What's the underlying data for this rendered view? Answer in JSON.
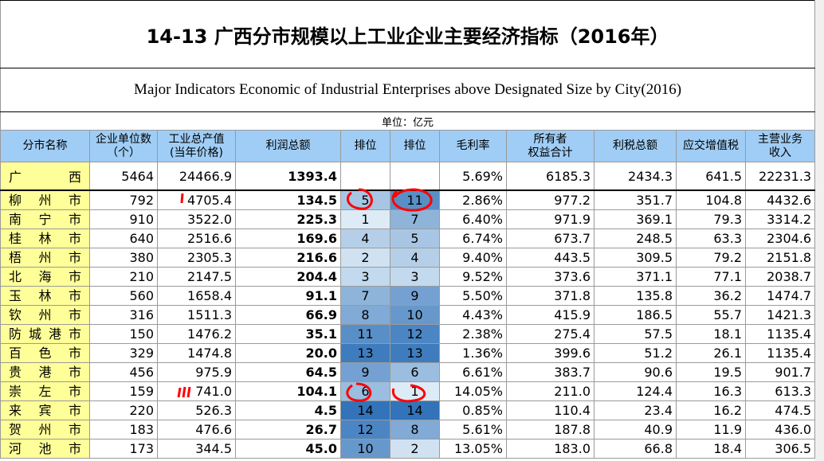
{
  "table": {
    "title": "14-13  广西分市规模以上工业企业主要经济指标（2016年）",
    "subtitle": "Major Indicators Economic of Industrial Enterprises above Designated Size by City(2016)",
    "unit": "单位：亿元",
    "header": [
      [
        "分市名称"
      ],
      [
        "企业单位数",
        "（个）"
      ],
      [
        "工业总产值",
        "(当年价格)"
      ],
      [
        "利润总额"
      ],
      [
        "排位"
      ],
      [
        "排位"
      ],
      [
        "毛利率"
      ],
      [
        "所有者",
        "权益合计"
      ],
      [
        "利税总额"
      ],
      [
        "应交增值税"
      ],
      [
        "主营业务",
        "收入"
      ]
    ],
    "total": {
      "name": "广　西",
      "cells": {
        "1": "5464",
        "2": "24466.9",
        "3": "1393.4",
        "6": "5.69%",
        "7": "6185.3",
        "8": "2434.3",
        "9": "641.5",
        "10": "22231.3"
      }
    },
    "rows": [
      [
        "柳州市",
        "792",
        "4705.4",
        "134.5",
        "5",
        "11",
        "2.86%",
        "977.2",
        "351.7",
        "104.8",
        "4432.6"
      ],
      [
        "南宁市",
        "910",
        "3522.0",
        "225.3",
        "1",
        "7",
        "6.40%",
        "971.9",
        "369.1",
        "79.3",
        "3314.2"
      ],
      [
        "桂林市",
        "640",
        "2516.6",
        "169.6",
        "4",
        "5",
        "6.74%",
        "673.7",
        "248.5",
        "63.3",
        "2304.6"
      ],
      [
        "梧州市",
        "380",
        "2305.3",
        "216.6",
        "2",
        "4",
        "9.40%",
        "443.5",
        "309.5",
        "79.2",
        "2151.8"
      ],
      [
        "北海市",
        "210",
        "2147.5",
        "204.4",
        "3",
        "3",
        "9.52%",
        "373.6",
        "371.1",
        "77.1",
        "2038.7"
      ],
      [
        "玉林市",
        "560",
        "1658.4",
        "91.1",
        "7",
        "9",
        "5.50%",
        "371.8",
        "135.8",
        "36.2",
        "1474.7"
      ],
      [
        "钦州市",
        "316",
        "1511.3",
        "66.9",
        "8",
        "10",
        "4.43%",
        "415.9",
        "186.5",
        "55.7",
        "1421.3"
      ],
      [
        "防城港市",
        "150",
        "1476.2",
        "35.1",
        "11",
        "12",
        "2.38%",
        "275.4",
        "57.5",
        "18.1",
        "1135.4"
      ],
      [
        "百色市",
        "329",
        "1474.8",
        "20.0",
        "13",
        "13",
        "1.36%",
        "399.6",
        "51.2",
        "26.1",
        "1135.4"
      ],
      [
        "贵港市",
        "456",
        "975.9",
        "64.5",
        "9",
        "6",
        "6.61%",
        "383.7",
        "90.6",
        "19.5",
        "901.7"
      ],
      [
        "崇左市",
        "159",
        "741.0",
        "104.1",
        "6",
        "1",
        "14.05%",
        "211.0",
        "124.4",
        "16.3",
        "613.3"
      ],
      [
        "来宾市",
        "220",
        "526.3",
        "4.5",
        "14",
        "14",
        "0.85%",
        "110.4",
        "23.4",
        "16.2",
        "474.5"
      ],
      [
        "贺州市",
        "183",
        "476.6",
        "26.7",
        "12",
        "8",
        "5.61%",
        "187.8",
        "40.9",
        "11.9",
        "436.0"
      ],
      [
        "河池市",
        "173",
        "344.5",
        "45.0",
        "10",
        "2",
        "13.05%",
        "183.0",
        "66.8",
        "18.4",
        "306.5"
      ]
    ]
  }
}
